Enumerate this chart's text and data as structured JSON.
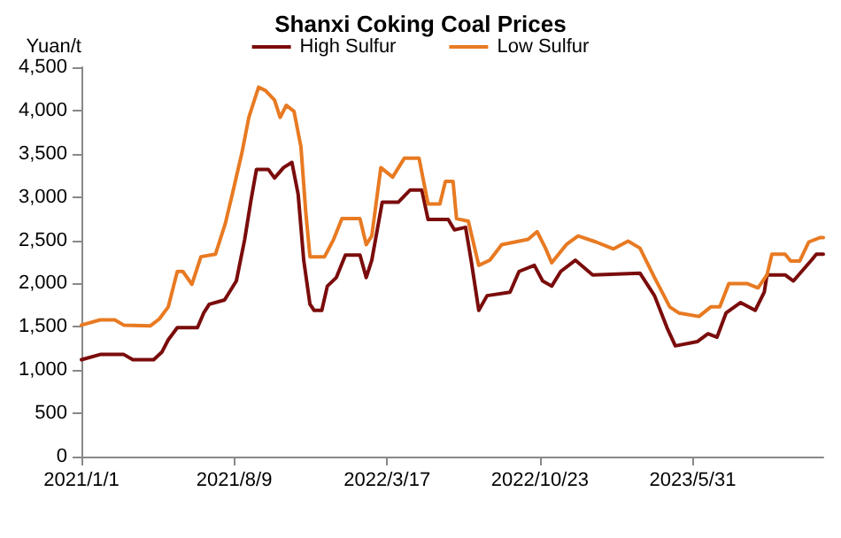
{
  "chart_data": {
    "type": "line",
    "title": "Shanxi Coking Coal Prices",
    "ylabel": "Yuan/t",
    "xlim": [
      "2021-01-01",
      "2023-12-05"
    ],
    "xticks": [
      {
        "value": "2021-01-01",
        "label": "2021/1/1"
      },
      {
        "value": "2021-08-09",
        "label": "2021/8/9"
      },
      {
        "value": "2022-03-17",
        "label": "2022/3/17"
      },
      {
        "value": "2022-10-23",
        "label": "2022/10/23"
      },
      {
        "value": "2023-05-31",
        "label": "2023/5/31"
      }
    ],
    "ylim": [
      0,
      4500
    ],
    "yticks": [
      {
        "value": 0,
        "label": "0"
      },
      {
        "value": 500,
        "label": "500"
      },
      {
        "value": 1000,
        "label": "1,000"
      },
      {
        "value": 1500,
        "label": "1,500"
      },
      {
        "value": 2000,
        "label": "2,000"
      },
      {
        "value": 2500,
        "label": "2,500"
      },
      {
        "value": 3000,
        "label": "3,000"
      },
      {
        "value": 3500,
        "label": "3,500"
      },
      {
        "value": 4000,
        "label": "4,000"
      },
      {
        "value": 4500,
        "label": "4,500"
      }
    ],
    "grid": false,
    "legend": "top",
    "marker": "none",
    "line_style": "solid",
    "series": [
      {
        "name": "High Sulfur",
        "color": "#7b0c0c",
        "x": [
          "2021-01-01",
          "2021-01-28",
          "2021-03-03",
          "2021-03-16",
          "2021-04-15",
          "2021-04-27",
          "2021-05-06",
          "2021-05-19",
          "2021-06-17",
          "2021-06-26",
          "2021-07-04",
          "2021-07-26",
          "2021-08-12",
          "2021-08-24",
          "2021-09-02",
          "2021-09-10",
          "2021-09-27",
          "2021-10-06",
          "2021-10-19",
          "2021-10-31",
          "2021-11-09",
          "2021-11-17",
          "2021-11-26",
          "2021-12-02",
          "2021-12-13",
          "2021-12-21",
          "2022-01-03",
          "2022-01-16",
          "2022-02-06",
          "2022-02-15",
          "2022-02-23",
          "2022-03-10",
          "2022-04-02",
          "2022-04-19",
          "2022-05-06",
          "2022-05-15",
          "2022-06-13",
          "2022-06-22",
          "2022-07-08",
          "2022-07-16",
          "2022-07-27",
          "2022-08-08",
          "2022-09-10",
          "2022-09-23",
          "2022-10-15",
          "2022-10-27",
          "2022-11-09",
          "2022-11-22",
          "2022-12-13",
          "2023-01-07",
          "2023-03-16",
          "2023-04-06",
          "2023-04-24",
          "2023-05-06",
          "2023-06-07",
          "2023-06-22",
          "2023-07-05",
          "2023-07-18",
          "2023-08-08",
          "2023-08-29",
          "2023-09-11",
          "2023-09-15",
          "2023-10-11",
          "2023-10-23",
          "2023-11-18",
          "2023-11-25",
          "2023-12-05"
        ],
        "values": [
          1120,
          1180,
          1180,
          1120,
          1120,
          1210,
          1350,
          1490,
          1490,
          1660,
          1760,
          1810,
          2030,
          2510,
          2960,
          3320,
          3320,
          3220,
          3340,
          3400,
          3030,
          2270,
          1760,
          1690,
          1690,
          1970,
          2070,
          2330,
          2330,
          2070,
          2270,
          2940,
          2940,
          3080,
          3080,
          2740,
          2740,
          2620,
          2650,
          2270,
          1690,
          1860,
          1900,
          2140,
          2210,
          2030,
          1970,
          2140,
          2270,
          2100,
          2120,
          1860,
          1490,
          1280,
          1330,
          1420,
          1380,
          1660,
          1780,
          1690,
          1900,
          2100,
          2100,
          2030,
          2270,
          2340,
          2340
        ]
      },
      {
        "name": "Low Sulfur",
        "color": "#e87a22",
        "x": [
          "2021-01-01",
          "2021-01-28",
          "2021-02-18",
          "2021-03-03",
          "2021-04-10",
          "2021-04-23",
          "2021-05-06",
          "2021-05-19",
          "2021-05-27",
          "2021-06-09",
          "2021-06-22",
          "2021-07-13",
          "2021-07-27",
          "2021-08-07",
          "2021-08-20",
          "2021-08-30",
          "2021-09-13",
          "2021-09-23",
          "2021-10-06",
          "2021-10-14",
          "2021-10-23",
          "2021-11-03",
          "2021-11-13",
          "2021-11-20",
          "2021-11-26",
          "2021-12-17",
          "2021-12-30",
          "2022-01-11",
          "2022-02-06",
          "2022-02-15",
          "2022-02-23",
          "2022-03-08",
          "2022-03-25",
          "2022-04-11",
          "2022-05-02",
          "2022-05-15",
          "2022-06-01",
          "2022-06-09",
          "2022-06-20",
          "2022-06-25",
          "2022-07-12",
          "2022-07-27",
          "2022-08-12",
          "2022-08-29",
          "2022-10-06",
          "2022-10-19",
          "2022-10-31",
          "2022-11-09",
          "2022-11-30",
          "2022-12-17",
          "2023-01-12",
          "2023-02-06",
          "2023-02-27",
          "2023-03-16",
          "2023-04-06",
          "2023-04-28",
          "2023-05-11",
          "2023-06-09",
          "2023-06-26",
          "2023-07-09",
          "2023-07-22",
          "2023-08-17",
          "2023-09-02",
          "2023-09-15",
          "2023-09-22",
          "2023-10-11",
          "2023-10-19",
          "2023-11-01",
          "2023-11-14",
          "2023-11-30",
          "2023-12-05"
        ],
        "values": [
          1520,
          1580,
          1580,
          1520,
          1510,
          1590,
          1730,
          2140,
          2140,
          1990,
          2310,
          2340,
          2690,
          3060,
          3510,
          3920,
          4270,
          4230,
          4120,
          3920,
          4060,
          3990,
          3580,
          2820,
          2310,
          2310,
          2510,
          2750,
          2750,
          2450,
          2550,
          3340,
          3230,
          3450,
          3450,
          2920,
          2920,
          3180,
          3180,
          2750,
          2720,
          2210,
          2270,
          2450,
          2510,
          2600,
          2410,
          2240,
          2450,
          2550,
          2480,
          2400,
          2490,
          2410,
          2070,
          1730,
          1660,
          1620,
          1730,
          1730,
          2000,
          2000,
          1950,
          2100,
          2340,
          2340,
          2260,
          2260,
          2480,
          2530,
          2530
        ]
      }
    ]
  }
}
